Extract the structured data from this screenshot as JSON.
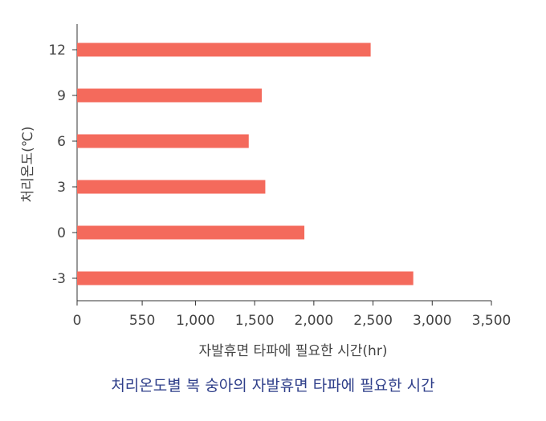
{
  "chart_data": {
    "type": "bar",
    "orientation": "horizontal",
    "categories": [
      "12",
      "9",
      "6",
      "3",
      "0",
      "-3"
    ],
    "values": [
      2480,
      1560,
      1450,
      1590,
      1920,
      2840
    ],
    "xlabel": "자발휴면 타파에 필요한 시간(hr)",
    "ylabel": "처리온도(℃)",
    "xlim": [
      0,
      3500
    ],
    "xticks": [
      0,
      550,
      1000,
      1500,
      2000,
      2500,
      3000,
      3500
    ],
    "xtick_labels": [
      "0",
      "550",
      "1,000",
      "1,500",
      "2,000",
      "2,500",
      "3,000",
      "3,500"
    ],
    "grid": false,
    "bar_color": "#f46a5c"
  },
  "caption": "처리온도별 복 숭아의 자발휴면 타파에 필요한 시간"
}
